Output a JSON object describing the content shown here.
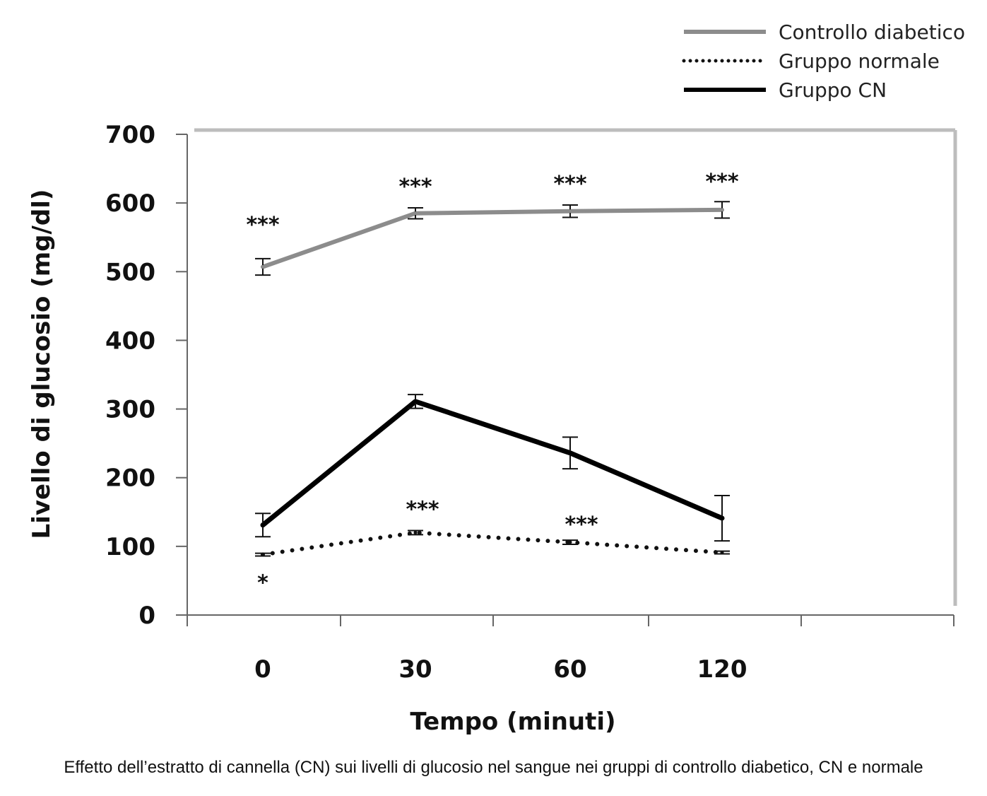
{
  "chart_data": {
    "type": "line",
    "x": [
      "0",
      "30",
      "60",
      "120"
    ],
    "xlabel": "Tempo (minuti)",
    "ylabel": "Livello di glucosio (mg/dl)",
    "ylim": [
      0,
      700
    ],
    "yticks": [
      "0",
      "100",
      "200",
      "300",
      "400",
      "500",
      "600",
      "700"
    ],
    "legend_position": "top-right",
    "grid": false,
    "series": [
      {
        "name": "Controllo diabetico",
        "values": [
          507,
          585,
          588,
          590
        ],
        "errors": [
          12,
          8,
          9,
          12
        ],
        "color": "#8c8c8c",
        "style": "solid",
        "significance": [
          "***",
          "***",
          "***",
          "***"
        ]
      },
      {
        "name": "Gruppo normale",
        "values": [
          88,
          120,
          106,
          91
        ],
        "errors": [
          2,
          3,
          3,
          2
        ],
        "color": "#111111",
        "style": "dotted",
        "significance": [
          "*",
          "***",
          "***",
          ""
        ]
      },
      {
        "name": "Gruppo CN",
        "values": [
          131,
          311,
          236,
          141
        ],
        "errors": [
          17,
          10,
          23,
          33
        ],
        "color": "#000000",
        "style": "solid",
        "significance": [
          "",
          "",
          "",
          ""
        ]
      }
    ]
  },
  "caption": "Effetto dell’estratto di cannella (CN) sui livelli di glucosio nel sangue nei gruppi di controllo diabetico, CN e normale"
}
